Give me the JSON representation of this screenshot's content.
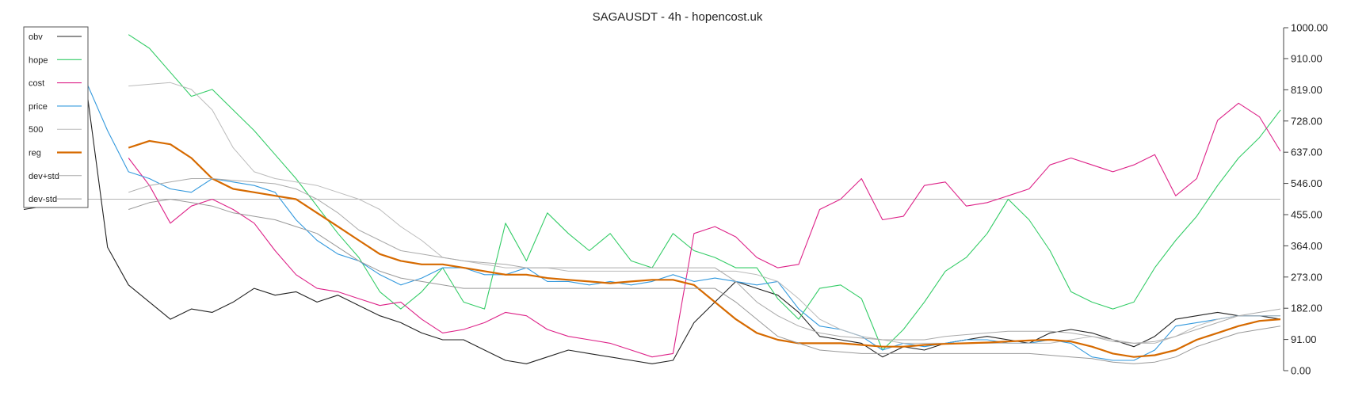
{
  "chart_data": {
    "type": "line",
    "title": "SAGAUSDT - 4h - hopencost.uk",
    "xlabel": "",
    "ylabel": "",
    "ylim": [
      0,
      1000
    ],
    "yticks": [
      "1000.00",
      "910.00",
      "819.00",
      "728.00",
      "637.00",
      "546.00",
      "455.00",
      "364.00",
      "273.00",
      "182.00",
      "91.00",
      "0.00"
    ],
    "hline": 500,
    "grid": false,
    "legend_position": "top-left",
    "x": [
      0,
      5,
      10,
      15,
      20,
      25,
      30,
      35,
      40,
      45,
      50,
      55,
      60,
      65,
      70,
      75,
      80,
      85,
      90,
      95,
      100,
      105,
      110,
      115,
      120,
      125,
      130,
      135,
      140,
      145,
      150,
      155,
      160,
      165,
      170,
      175,
      180,
      185,
      190,
      195,
      200,
      205,
      210,
      215,
      220,
      225,
      230,
      235,
      240,
      245,
      250,
      255,
      260,
      265,
      270,
      275,
      280,
      285,
      290,
      295,
      300
    ],
    "series": [
      {
        "name": "obv",
        "color": "#222222",
        "width": 1.1,
        "values": [
          470,
          480,
          560,
          820,
          360,
          250,
          200,
          150,
          180,
          170,
          200,
          240,
          220,
          230,
          200,
          220,
          190,
          160,
          140,
          110,
          90,
          90,
          60,
          30,
          20,
          40,
          60,
          50,
          40,
          30,
          20,
          30,
          140,
          200,
          260,
          240,
          220,
          170,
          100,
          90,
          80,
          40,
          70,
          60,
          80,
          90,
          100,
          90,
          80,
          110,
          120,
          110,
          90,
          70,
          100,
          150,
          160,
          170,
          160,
          160,
          150
        ]
      },
      {
        "name": "hope",
        "color": "#33cc66",
        "width": 1.1,
        "values": [
          null,
          null,
          null,
          null,
          null,
          980,
          940,
          870,
          800,
          820,
          760,
          700,
          630,
          560,
          480,
          400,
          330,
          230,
          180,
          230,
          300,
          200,
          180,
          430,
          320,
          460,
          400,
          350,
          400,
          320,
          300,
          400,
          350,
          330,
          300,
          300,
          210,
          150,
          240,
          250,
          210,
          60,
          120,
          200,
          290,
          330,
          400,
          500,
          440,
          350,
          230,
          200,
          180,
          200,
          300,
          380,
          450,
          540,
          620,
          680,
          760
        ]
      },
      {
        "name": "cost",
        "color": "#dd2288",
        "width": 1.1,
        "values": [
          null,
          null,
          null,
          null,
          null,
          620,
          540,
          430,
          480,
          500,
          470,
          430,
          350,
          280,
          240,
          230,
          210,
          190,
          200,
          150,
          110,
          120,
          140,
          170,
          160,
          120,
          100,
          90,
          80,
          60,
          40,
          50,
          400,
          420,
          390,
          330,
          300,
          310,
          470,
          500,
          560,
          440,
          450,
          540,
          550,
          480,
          490,
          510,
          530,
          600,
          620,
          600,
          580,
          600,
          630,
          510,
          560,
          730,
          780,
          740,
          640
        ]
      },
      {
        "name": "price",
        "color": "#3399dd",
        "width": 1.1,
        "values": [
          510,
          500,
          560,
          840,
          700,
          580,
          560,
          530,
          520,
          560,
          550,
          540,
          520,
          440,
          380,
          340,
          320,
          280,
          250,
          270,
          300,
          300,
          280,
          280,
          300,
          260,
          260,
          250,
          260,
          250,
          260,
          280,
          260,
          270,
          260,
          250,
          260,
          180,
          130,
          120,
          100,
          60,
          80,
          70,
          80,
          90,
          90,
          80,
          80,
          90,
          80,
          40,
          30,
          30,
          60,
          130,
          140,
          150,
          160,
          160,
          160
        ]
      },
      {
        "name": "500",
        "color": "#bbbbbb",
        "width": 1.0,
        "values": [
          null,
          null,
          null,
          null,
          null,
          830,
          835,
          840,
          820,
          760,
          650,
          580,
          560,
          550,
          540,
          520,
          500,
          470,
          420,
          380,
          330,
          320,
          310,
          300,
          300,
          300,
          290,
          290,
          290,
          290,
          290,
          290,
          290,
          290,
          290,
          280,
          260,
          210,
          150,
          120,
          100,
          90,
          80,
          80,
          80,
          80,
          80,
          80,
          80,
          80,
          90,
          100,
          90,
          80,
          80,
          100,
          130,
          150,
          160,
          160,
          160
        ]
      },
      {
        "name": "reg",
        "color": "#d66a00",
        "width": 2.2,
        "values": [
          null,
          null,
          null,
          null,
          null,
          650,
          670,
          660,
          620,
          560,
          530,
          520,
          510,
          500,
          460,
          420,
          380,
          340,
          320,
          310,
          310,
          300,
          290,
          280,
          280,
          270,
          265,
          260,
          255,
          260,
          265,
          265,
          250,
          200,
          150,
          110,
          90,
          80,
          80,
          80,
          75,
          70,
          70,
          75,
          78,
          80,
          82,
          85,
          88,
          90,
          85,
          70,
          50,
          40,
          45,
          60,
          90,
          110,
          130,
          145,
          150
        ]
      },
      {
        "name": "dev+std",
        "color": "#aaaaaa",
        "width": 1.0,
        "values": [
          null,
          null,
          null,
          null,
          null,
          520,
          540,
          550,
          560,
          560,
          555,
          550,
          545,
          530,
          500,
          460,
          410,
          380,
          350,
          340,
          330,
          320,
          315,
          310,
          300,
          300,
          300,
          300,
          300,
          300,
          300,
          300,
          300,
          300,
          260,
          200,
          160,
          130,
          110,
          100,
          95,
          90,
          90,
          90,
          100,
          105,
          110,
          115,
          115,
          115,
          110,
          100,
          85,
          80,
          85,
          100,
          120,
          140,
          160,
          170,
          180
        ]
      },
      {
        "name": "dev-std",
        "color": "#999999",
        "width": 1.0,
        "values": [
          null,
          null,
          null,
          null,
          null,
          470,
          490,
          500,
          490,
          480,
          460,
          450,
          440,
          420,
          400,
          360,
          320,
          290,
          270,
          260,
          250,
          240,
          240,
          240,
          240,
          240,
          240,
          240,
          240,
          240,
          240,
          240,
          240,
          240,
          200,
          150,
          100,
          80,
          60,
          55,
          50,
          50,
          50,
          50,
          50,
          50,
          50,
          50,
          50,
          45,
          40,
          35,
          25,
          20,
          25,
          40,
          70,
          90,
          110,
          120,
          130
        ]
      }
    ]
  }
}
